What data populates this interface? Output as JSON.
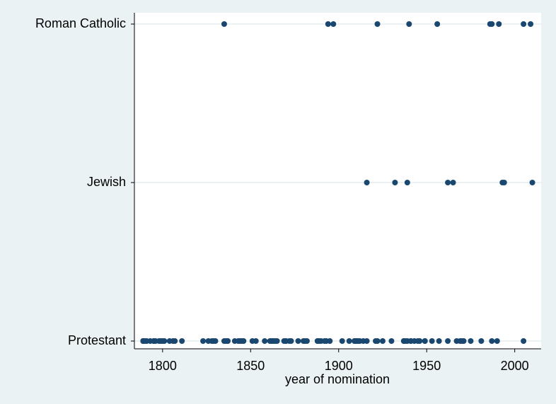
{
  "chart_data": {
    "type": "strip",
    "xlabel": "year of nomination",
    "categories": [
      "Protestant",
      "Jewish",
      "Roman Catholic"
    ],
    "values": [
      [
        1789,
        1789,
        1789,
        1789,
        1790,
        1791,
        1793,
        1795,
        1795,
        1796,
        1798,
        1799,
        1800,
        1801,
        1804,
        1806,
        1807,
        1811,
        1823,
        1826,
        1828,
        1829,
        1830,
        1835,
        1836,
        1837,
        1837,
        1841,
        1843,
        1844,
        1845,
        1846,
        1851,
        1853,
        1858,
        1861,
        1862,
        1862,
        1863,
        1864,
        1865,
        1869,
        1870,
        1870,
        1872,
        1873,
        1877,
        1880,
        1881,
        1882,
        1888,
        1888,
        1889,
        1890,
        1892,
        1893,
        1895,
        1902,
        1906,
        1909,
        1909,
        1910,
        1910,
        1911,
        1912,
        1914,
        1916,
        1921,
        1922,
        1925,
        1930,
        1937,
        1937,
        1938,
        1939,
        1941,
        1941,
        1943,
        1945,
        1946,
        1949,
        1949,
        1953,
        1957,
        1962,
        1967,
        1969,
        1970,
        1971,
        1975,
        1981,
        1987,
        1990,
        2005
      ],
      [
        1916,
        1932,
        1939,
        1962,
        1965,
        1993,
        1994,
        2010
      ],
      [
        1835,
        1894,
        1897,
        1922,
        1940,
        1956,
        1986,
        1987,
        1991,
        2005,
        2009
      ]
    ],
    "color": "#1a476f",
    "xlim": [
      1784,
      2015
    ],
    "xticks": [
      1800,
      1850,
      1900,
      1950,
      2000
    ],
    "grid": true
  }
}
